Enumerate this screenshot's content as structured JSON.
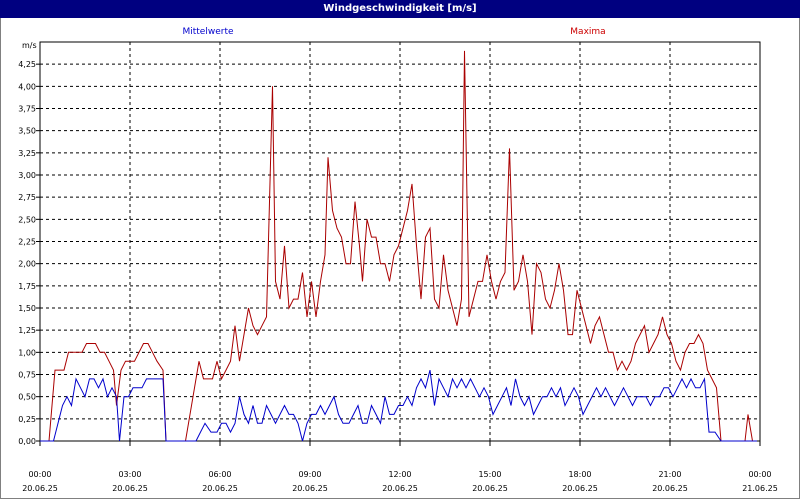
{
  "window": {
    "title": "Windgeschwindigkeit [m/s]"
  },
  "chart_data": {
    "type": "line",
    "title": "Windgeschwindigkeit [m/s]",
    "ylabel": "m/s",
    "xlabel": "",
    "ylim": [
      0,
      4.5
    ],
    "xlim_hours": [
      0,
      24
    ],
    "grid": true,
    "y_ticks": [
      "0,00",
      "0,25",
      "0,50",
      "0,75",
      "1,00",
      "1,25",
      "1,50",
      "1,75",
      "2,00",
      "2,25",
      "2,50",
      "2,75",
      "3,00",
      "3,25",
      "3,50",
      "3,75",
      "4,00",
      "4,25"
    ],
    "x_ticks": [
      {
        "time": "00:00",
        "date": "20.06.25"
      },
      {
        "time": "03:00",
        "date": "20.06.25"
      },
      {
        "time": "06:00",
        "date": "20.06.25"
      },
      {
        "time": "09:00",
        "date": "20.06.25"
      },
      {
        "time": "12:00",
        "date": "20.06.25"
      },
      {
        "time": "15:00",
        "date": "20.06.25"
      },
      {
        "time": "18:00",
        "date": "20.06.25"
      },
      {
        "time": "21:00",
        "date": "20.06.25"
      },
      {
        "time": "00:00",
        "date": "21.06.25"
      }
    ],
    "series": [
      {
        "name": "Mittelwerte",
        "color": "#0000cc",
        "points": [
          [
            0.0,
            0.0
          ],
          [
            0.25,
            0.0
          ],
          [
            0.45,
            0.0
          ],
          [
            0.6,
            0.2
          ],
          [
            0.75,
            0.4
          ],
          [
            0.9,
            0.5
          ],
          [
            1.05,
            0.4
          ],
          [
            1.2,
            0.7
          ],
          [
            1.35,
            0.6
          ],
          [
            1.5,
            0.5
          ],
          [
            1.65,
            0.7
          ],
          [
            1.8,
            0.7
          ],
          [
            1.95,
            0.6
          ],
          [
            2.1,
            0.7
          ],
          [
            2.25,
            0.5
          ],
          [
            2.4,
            0.6
          ],
          [
            2.55,
            0.5
          ],
          [
            2.65,
            0.0
          ],
          [
            2.8,
            0.5
          ],
          [
            2.95,
            0.5
          ],
          [
            3.1,
            0.6
          ],
          [
            3.25,
            0.6
          ],
          [
            3.4,
            0.6
          ],
          [
            3.55,
            0.7
          ],
          [
            3.75,
            0.7
          ],
          [
            3.95,
            0.7
          ],
          [
            4.1,
            0.7
          ],
          [
            4.2,
            0.0
          ],
          [
            4.5,
            0.0
          ],
          [
            4.85,
            0.0
          ],
          [
            5.0,
            0.0
          ],
          [
            5.2,
            0.0
          ],
          [
            5.35,
            0.1
          ],
          [
            5.5,
            0.2
          ],
          [
            5.7,
            0.1
          ],
          [
            5.9,
            0.1
          ],
          [
            6.05,
            0.2
          ],
          [
            6.2,
            0.2
          ],
          [
            6.35,
            0.1
          ],
          [
            6.5,
            0.2
          ],
          [
            6.65,
            0.5
          ],
          [
            6.8,
            0.3
          ],
          [
            6.95,
            0.2
          ],
          [
            7.1,
            0.4
          ],
          [
            7.25,
            0.2
          ],
          [
            7.4,
            0.2
          ],
          [
            7.55,
            0.4
          ],
          [
            7.7,
            0.3
          ],
          [
            7.85,
            0.2
          ],
          [
            8.0,
            0.3
          ],
          [
            8.15,
            0.4
          ],
          [
            8.3,
            0.3
          ],
          [
            8.45,
            0.3
          ],
          [
            8.6,
            0.2
          ],
          [
            8.75,
            0.0
          ],
          [
            8.9,
            0.2
          ],
          [
            9.05,
            0.3
          ],
          [
            9.2,
            0.3
          ],
          [
            9.35,
            0.4
          ],
          [
            9.5,
            0.3
          ],
          [
            9.65,
            0.4
          ],
          [
            9.8,
            0.5
          ],
          [
            9.95,
            0.3
          ],
          [
            10.1,
            0.2
          ],
          [
            10.3,
            0.2
          ],
          [
            10.45,
            0.3
          ],
          [
            10.6,
            0.4
          ],
          [
            10.75,
            0.2
          ],
          [
            10.9,
            0.2
          ],
          [
            11.05,
            0.4
          ],
          [
            11.2,
            0.3
          ],
          [
            11.35,
            0.2
          ],
          [
            11.5,
            0.5
          ],
          [
            11.65,
            0.3
          ],
          [
            11.8,
            0.3
          ],
          [
            11.95,
            0.4
          ],
          [
            12.1,
            0.4
          ],
          [
            12.25,
            0.5
          ],
          [
            12.4,
            0.4
          ],
          [
            12.55,
            0.6
          ],
          [
            12.7,
            0.7
          ],
          [
            12.85,
            0.6
          ],
          [
            13.0,
            0.8
          ],
          [
            13.15,
            0.4
          ],
          [
            13.3,
            0.7
          ],
          [
            13.45,
            0.6
          ],
          [
            13.6,
            0.5
          ],
          [
            13.75,
            0.7
          ],
          [
            13.9,
            0.6
          ],
          [
            14.05,
            0.7
          ],
          [
            14.2,
            0.6
          ],
          [
            14.35,
            0.7
          ],
          [
            14.5,
            0.6
          ],
          [
            14.65,
            0.5
          ],
          [
            14.8,
            0.6
          ],
          [
            14.95,
            0.5
          ],
          [
            15.1,
            0.3
          ],
          [
            15.25,
            0.4
          ],
          [
            15.4,
            0.5
          ],
          [
            15.55,
            0.6
          ],
          [
            15.7,
            0.4
          ],
          [
            15.85,
            0.7
          ],
          [
            16.0,
            0.5
          ],
          [
            16.15,
            0.4
          ],
          [
            16.3,
            0.5
          ],
          [
            16.45,
            0.3
          ],
          [
            16.6,
            0.4
          ],
          [
            16.75,
            0.5
          ],
          [
            16.9,
            0.5
          ],
          [
            17.05,
            0.6
          ],
          [
            17.2,
            0.5
          ],
          [
            17.35,
            0.6
          ],
          [
            17.5,
            0.4
          ],
          [
            17.65,
            0.5
          ],
          [
            17.8,
            0.6
          ],
          [
            17.95,
            0.5
          ],
          [
            18.1,
            0.3
          ],
          [
            18.25,
            0.4
          ],
          [
            18.4,
            0.5
          ],
          [
            18.55,
            0.6
          ],
          [
            18.7,
            0.5
          ],
          [
            18.85,
            0.6
          ],
          [
            19.0,
            0.5
          ],
          [
            19.15,
            0.4
          ],
          [
            19.3,
            0.5
          ],
          [
            19.45,
            0.6
          ],
          [
            19.6,
            0.5
          ],
          [
            19.75,
            0.4
          ],
          [
            19.9,
            0.5
          ],
          [
            20.05,
            0.5
          ],
          [
            20.2,
            0.5
          ],
          [
            20.35,
            0.4
          ],
          [
            20.5,
            0.5
          ],
          [
            20.65,
            0.5
          ],
          [
            20.8,
            0.6
          ],
          [
            20.95,
            0.6
          ],
          [
            21.1,
            0.5
          ],
          [
            21.25,
            0.6
          ],
          [
            21.4,
            0.7
          ],
          [
            21.55,
            0.6
          ],
          [
            21.7,
            0.7
          ],
          [
            21.85,
            0.6
          ],
          [
            22.0,
            0.6
          ],
          [
            22.15,
            0.7
          ],
          [
            22.3,
            0.1
          ],
          [
            22.5,
            0.1
          ],
          [
            22.7,
            0.0
          ],
          [
            22.85,
            0.0
          ],
          [
            23.0,
            0.0
          ],
          [
            23.2,
            0.0
          ],
          [
            23.35,
            0.0
          ],
          [
            23.55,
            0.0
          ],
          [
            23.75,
            0.0
          ],
          [
            23.9,
            0.0
          ]
        ]
      },
      {
        "name": "Maxima",
        "color": "#aa0000",
        "points": [
          [
            0.0,
            0.0
          ],
          [
            0.3,
            0.0
          ],
          [
            0.5,
            0.8
          ],
          [
            0.65,
            0.8
          ],
          [
            0.8,
            0.8
          ],
          [
            0.95,
            1.0
          ],
          [
            1.1,
            1.0
          ],
          [
            1.25,
            1.0
          ],
          [
            1.4,
            1.0
          ],
          [
            1.55,
            1.1
          ],
          [
            1.7,
            1.1
          ],
          [
            1.85,
            1.1
          ],
          [
            2.0,
            1.0
          ],
          [
            2.15,
            1.0
          ],
          [
            2.3,
            0.9
          ],
          [
            2.45,
            0.8
          ],
          [
            2.55,
            0.4
          ],
          [
            2.7,
            0.8
          ],
          [
            2.85,
            0.9
          ],
          [
            3.0,
            0.9
          ],
          [
            3.15,
            0.9
          ],
          [
            3.3,
            1.0
          ],
          [
            3.45,
            1.1
          ],
          [
            3.6,
            1.1
          ],
          [
            3.75,
            1.0
          ],
          [
            3.9,
            0.9
          ],
          [
            4.1,
            0.8
          ],
          [
            4.2,
            0.0
          ],
          [
            4.5,
            0.0
          ],
          [
            4.85,
            0.0
          ],
          [
            5.0,
            0.3
          ],
          [
            5.15,
            0.6
          ],
          [
            5.3,
            0.9
          ],
          [
            5.45,
            0.7
          ],
          [
            5.6,
            0.7
          ],
          [
            5.75,
            0.7
          ],
          [
            5.9,
            0.9
          ],
          [
            6.05,
            0.7
          ],
          [
            6.2,
            0.8
          ],
          [
            6.35,
            0.9
          ],
          [
            6.5,
            1.3
          ],
          [
            6.65,
            0.9
          ],
          [
            6.8,
            1.2
          ],
          [
            6.95,
            1.5
          ],
          [
            7.1,
            1.3
          ],
          [
            7.25,
            1.2
          ],
          [
            7.4,
            1.3
          ],
          [
            7.55,
            1.4
          ],
          [
            7.65,
            2.7
          ],
          [
            7.75,
            4.0
          ],
          [
            7.85,
            1.8
          ],
          [
            8.0,
            1.6
          ],
          [
            8.15,
            2.2
          ],
          [
            8.3,
            1.5
          ],
          [
            8.45,
            1.6
          ],
          [
            8.6,
            1.6
          ],
          [
            8.75,
            1.9
          ],
          [
            8.9,
            1.4
          ],
          [
            9.05,
            1.8
          ],
          [
            9.2,
            1.4
          ],
          [
            9.35,
            1.8
          ],
          [
            9.5,
            2.1
          ],
          [
            9.6,
            3.2
          ],
          [
            9.75,
            2.6
          ],
          [
            9.9,
            2.4
          ],
          [
            10.05,
            2.3
          ],
          [
            10.2,
            2.0
          ],
          [
            10.35,
            2.0
          ],
          [
            10.5,
            2.7
          ],
          [
            10.65,
            2.2
          ],
          [
            10.75,
            1.8
          ],
          [
            10.9,
            2.5
          ],
          [
            11.05,
            2.3
          ],
          [
            11.2,
            2.3
          ],
          [
            11.35,
            2.0
          ],
          [
            11.5,
            2.0
          ],
          [
            11.65,
            1.8
          ],
          [
            11.8,
            2.1
          ],
          [
            11.95,
            2.2
          ],
          [
            12.1,
            2.4
          ],
          [
            12.25,
            2.6
          ],
          [
            12.4,
            2.9
          ],
          [
            12.55,
            2.2
          ],
          [
            12.7,
            1.6
          ],
          [
            12.85,
            2.3
          ],
          [
            13.0,
            2.4
          ],
          [
            13.15,
            1.6
          ],
          [
            13.3,
            1.5
          ],
          [
            13.45,
            2.1
          ],
          [
            13.6,
            1.7
          ],
          [
            13.75,
            1.5
          ],
          [
            13.9,
            1.3
          ],
          [
            14.05,
            1.6
          ],
          [
            14.15,
            4.4
          ],
          [
            14.3,
            1.4
          ],
          [
            14.45,
            1.6
          ],
          [
            14.6,
            1.8
          ],
          [
            14.75,
            1.8
          ],
          [
            14.9,
            2.1
          ],
          [
            15.05,
            1.8
          ],
          [
            15.2,
            1.6
          ],
          [
            15.35,
            1.8
          ],
          [
            15.5,
            1.9
          ],
          [
            15.65,
            3.3
          ],
          [
            15.8,
            1.7
          ],
          [
            15.95,
            1.8
          ],
          [
            16.1,
            2.1
          ],
          [
            16.25,
            1.8
          ],
          [
            16.4,
            1.2
          ],
          [
            16.55,
            2.0
          ],
          [
            16.7,
            1.9
          ],
          [
            16.85,
            1.6
          ],
          [
            17.0,
            1.5
          ],
          [
            17.15,
            1.7
          ],
          [
            17.3,
            2.0
          ],
          [
            17.45,
            1.7
          ],
          [
            17.6,
            1.2
          ],
          [
            17.75,
            1.2
          ],
          [
            17.9,
            1.7
          ],
          [
            18.05,
            1.5
          ],
          [
            18.2,
            1.3
          ],
          [
            18.35,
            1.1
          ],
          [
            18.5,
            1.3
          ],
          [
            18.65,
            1.4
          ],
          [
            18.8,
            1.2
          ],
          [
            18.95,
            1.0
          ],
          [
            19.1,
            1.0
          ],
          [
            19.25,
            0.8
          ],
          [
            19.4,
            0.9
          ],
          [
            19.55,
            0.8
          ],
          [
            19.7,
            0.9
          ],
          [
            19.85,
            1.1
          ],
          [
            20.0,
            1.2
          ],
          [
            20.15,
            1.3
          ],
          [
            20.3,
            1.0
          ],
          [
            20.45,
            1.1
          ],
          [
            20.6,
            1.2
          ],
          [
            20.75,
            1.4
          ],
          [
            20.9,
            1.2
          ],
          [
            21.05,
            1.1
          ],
          [
            21.2,
            0.9
          ],
          [
            21.35,
            0.8
          ],
          [
            21.5,
            1.0
          ],
          [
            21.65,
            1.1
          ],
          [
            21.8,
            1.1
          ],
          [
            21.95,
            1.2
          ],
          [
            22.1,
            1.1
          ],
          [
            22.25,
            0.8
          ],
          [
            22.4,
            0.7
          ],
          [
            22.55,
            0.6
          ],
          [
            22.7,
            0.0
          ],
          [
            22.85,
            0.0
          ],
          [
            23.0,
            0.0
          ],
          [
            23.15,
            0.0
          ],
          [
            23.35,
            0.0
          ],
          [
            23.5,
            0.0
          ],
          [
            23.6,
            0.3
          ],
          [
            23.75,
            0.0
          ],
          [
            23.9,
            0.0
          ]
        ]
      }
    ]
  }
}
